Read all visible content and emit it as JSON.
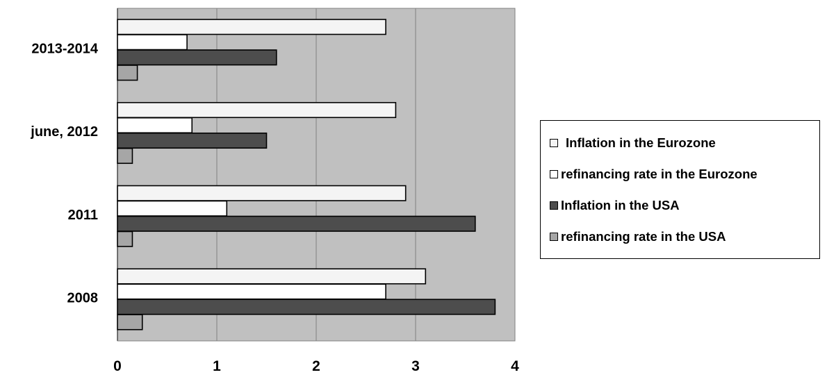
{
  "chart_data": {
    "type": "bar",
    "orientation": "horizontal",
    "categories": [
      "2013-2014",
      "june, 2012",
      "2011",
      "2008"
    ],
    "series": [
      {
        "name": "Inflation in the Eurozone",
        "color": "#f4f4f4",
        "values": [
          2.7,
          2.8,
          2.9,
          3.1
        ]
      },
      {
        "name": "refinancing rate in the Eurozone",
        "color": "#ffffff",
        "values": [
          0.7,
          0.75,
          1.1,
          2.7
        ]
      },
      {
        "name": "Inflation in the USA",
        "color": "#4d4d4d",
        "values": [
          1.6,
          1.5,
          3.6,
          3.8
        ]
      },
      {
        "name": "refinancing rate in the USA",
        "color": "#a6a6a6",
        "values": [
          0.2,
          0.15,
          0.15,
          0.25
        ]
      }
    ],
    "xlim": [
      0,
      4
    ],
    "xticks": [
      "0",
      "1",
      "2",
      "3",
      "4"
    ],
    "title": "",
    "xlabel": "",
    "ylabel": "",
    "grid": "vertical",
    "plot_background": "#c0c0c0",
    "legend_position": "right"
  }
}
